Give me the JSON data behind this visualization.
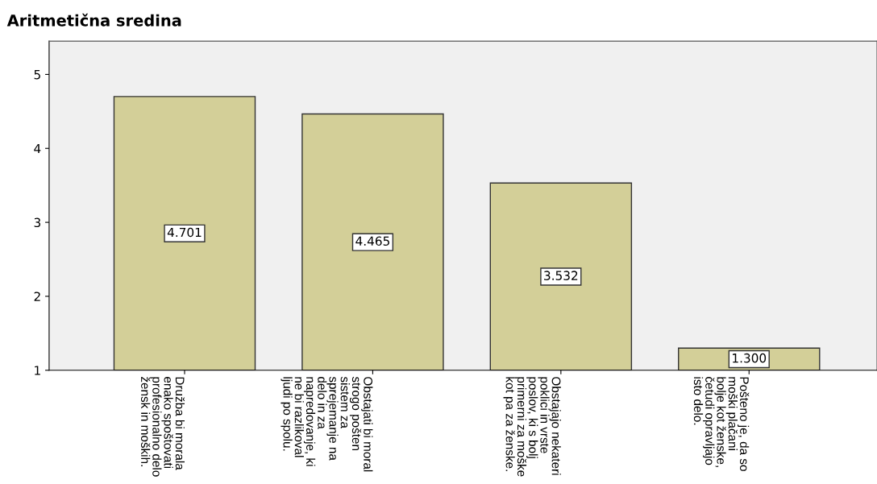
{
  "chart_data": {
    "type": "bar",
    "title": "Aritmetična sredina",
    "categories": [
      "Družba bi morala\nenako spoštovati\nprofesionalno delo\nžensk in moških.",
      "Obstajati bi moral\nstrogo pošten\nsistem za\nsprejemanje na\ndelo in za\nnapredovanje, ki\nne bi razlikoval\nljudi po spolu.",
      "Obstajajo nekateri\npoklici in vrste\nposlov, ki s bolj\nprimerni za moške\nkot pa za ženske.",
      "Pošteno je, da so\nmoški plačani\nbolje kot ženske,\nčetudi opravljajo\nisto delo."
    ],
    "values": [
      4.701,
      4.465,
      3.532,
      1.3
    ],
    "value_labels": [
      "4.701",
      "4.465",
      "3.532",
      "1.300"
    ],
    "color": "#d3cf98",
    "ylim": [
      1,
      5.45
    ],
    "yticks": [
      1,
      2,
      3,
      4,
      5
    ],
    "grid": false,
    "legend": false
  }
}
